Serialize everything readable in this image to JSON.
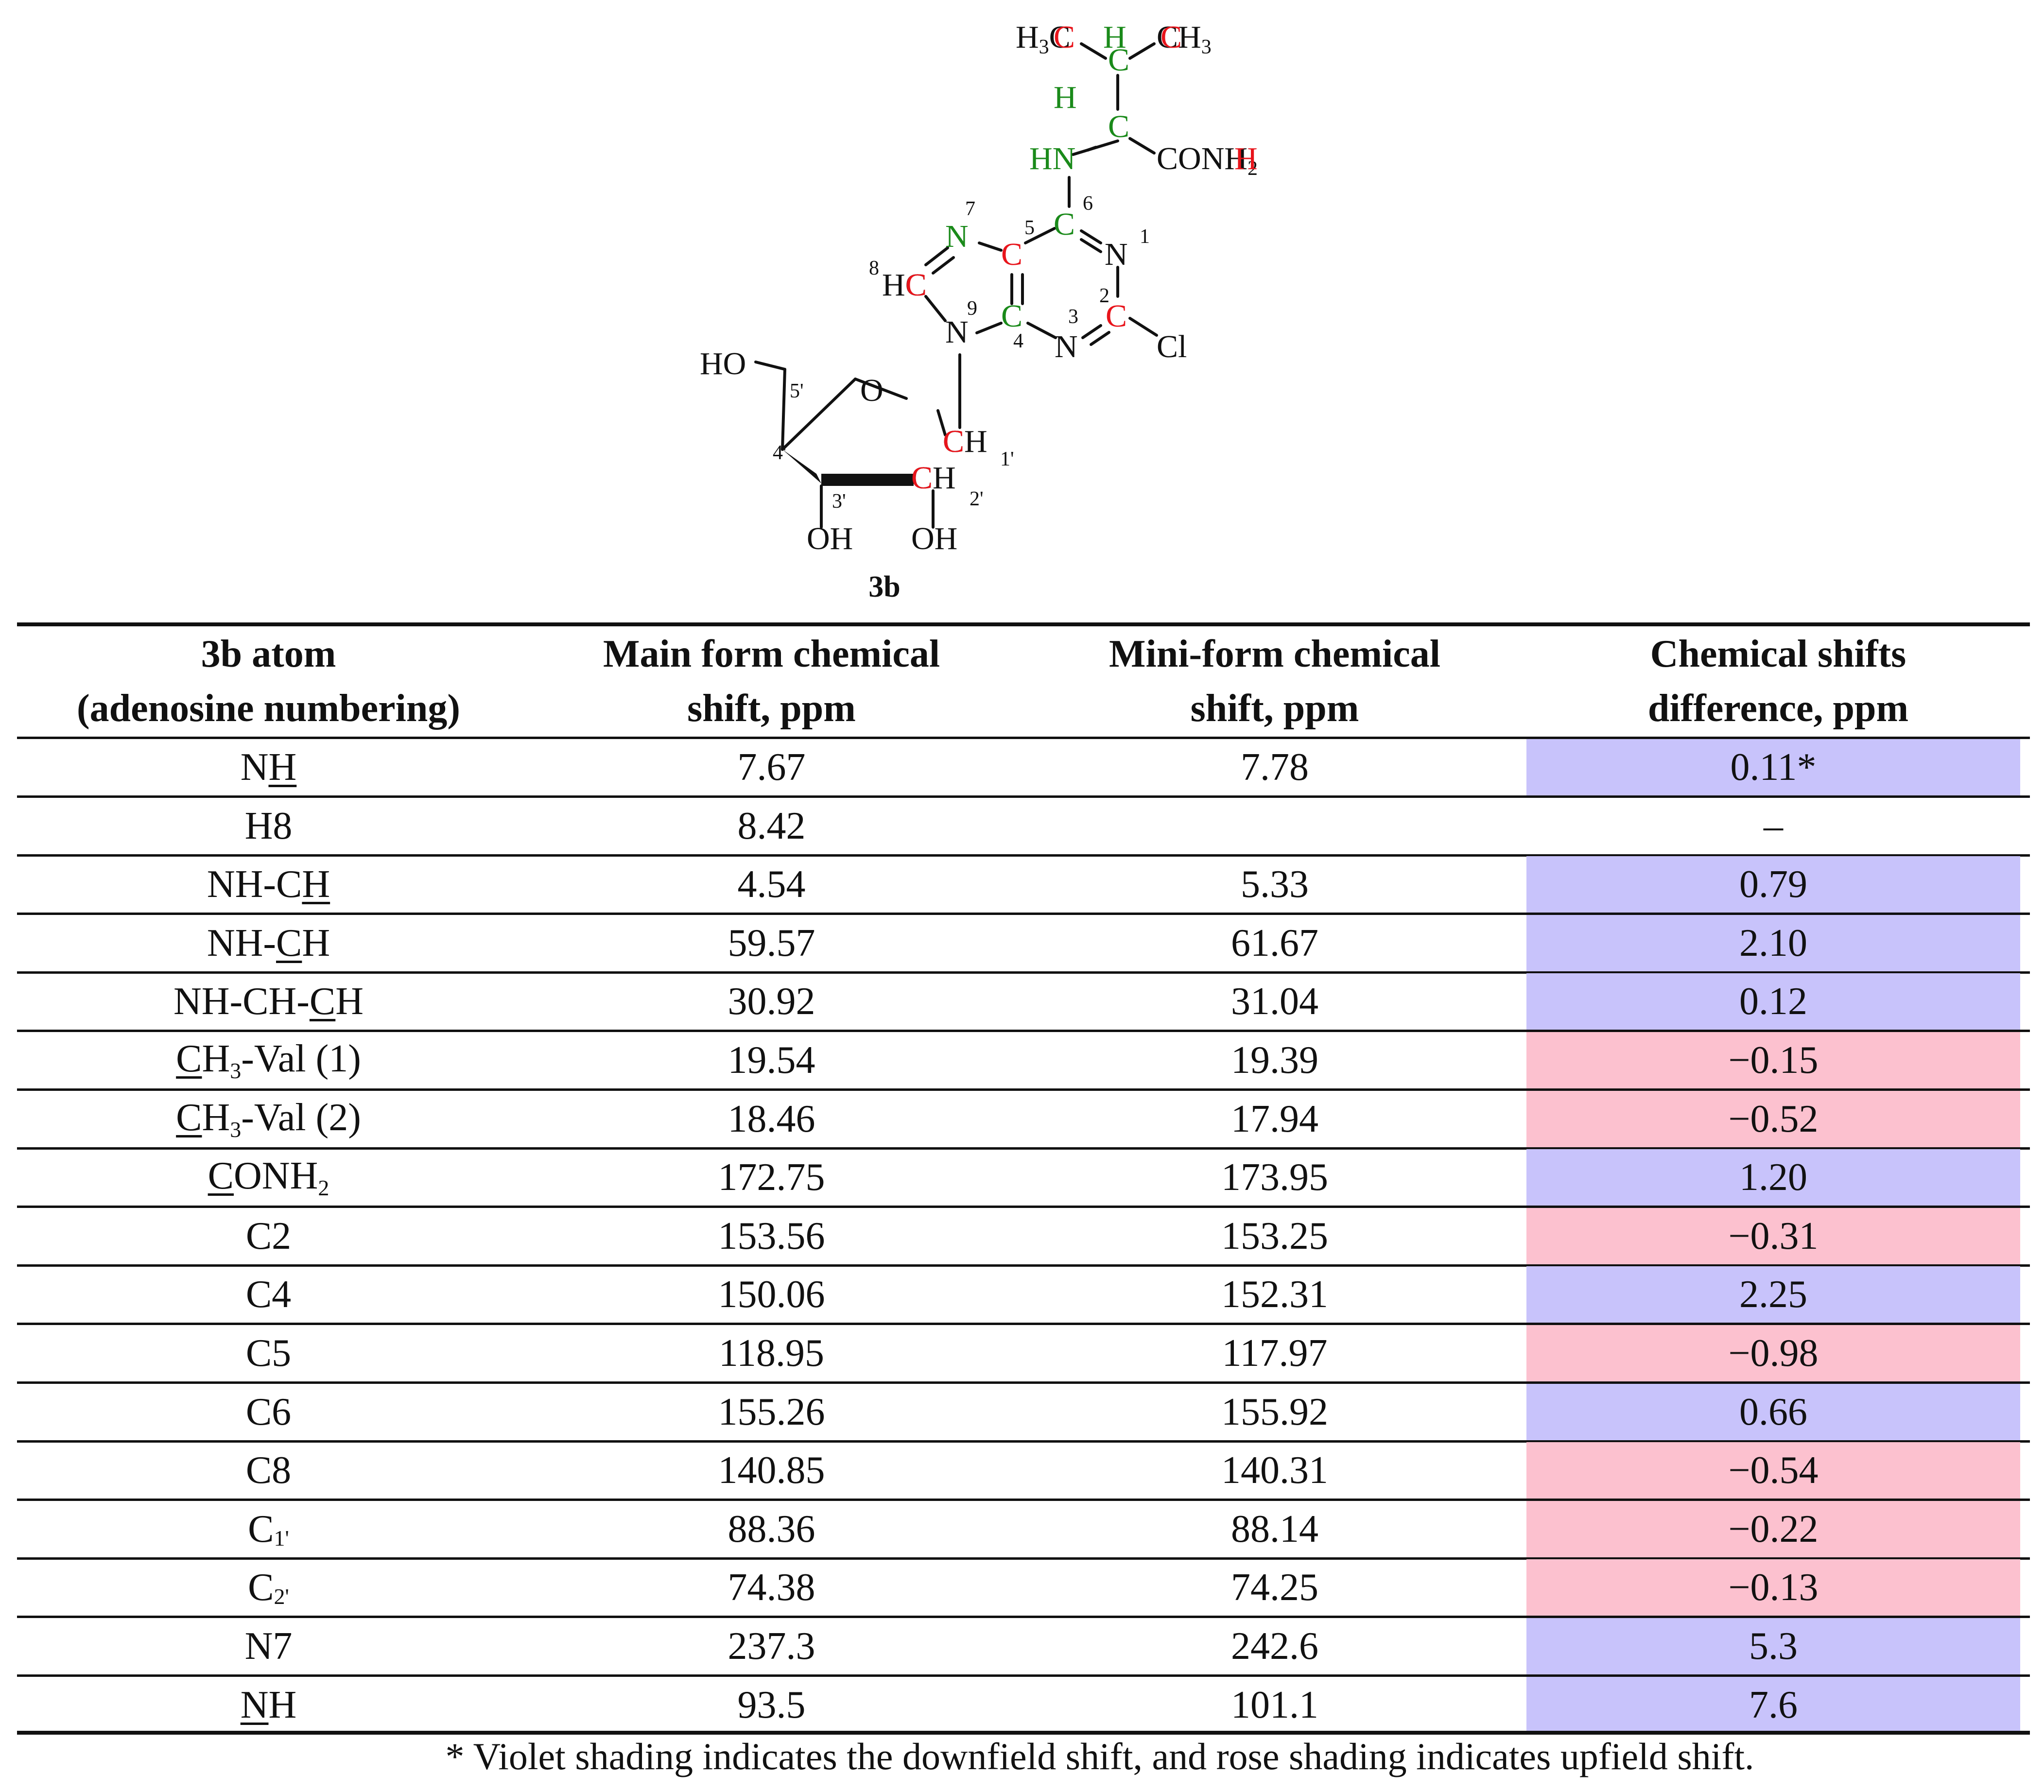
{
  "compound": {
    "label": "3b",
    "atoms": {
      "h3c": "H3C",
      "h_top": "H",
      "ch3": "CH3",
      "c_top": "C",
      "h_alpha": "H",
      "c_alpha": "C",
      "hn": "HN",
      "conh2": "CONH2",
      "c6": "C",
      "n1": "N",
      "c5": "C",
      "n7": "N",
      "hc8": "HC",
      "c4": "C",
      "c2": "C",
      "n3": "N",
      "cl": "Cl",
      "n9": "N",
      "ho": "HO",
      "o": "O",
      "ch1": "CH",
      "ch2": "CH",
      "oh3": "OH",
      "oh2": "OH"
    },
    "numbers": [
      "1",
      "2",
      "3",
      "4",
      "5",
      "6",
      "7",
      "8",
      "9",
      "1'",
      "2'",
      "3'",
      "4'",
      "5'"
    ]
  },
  "table": {
    "headers": [
      [
        "3b atom",
        "(adenosine numbering)"
      ],
      [
        "Main form chemical",
        "shift, ppm"
      ],
      [
        "Mini-form chemical",
        "shift, ppm"
      ],
      [
        "Chemical shifts",
        "difference, ppm"
      ]
    ],
    "rows": [
      {
        "atom": "NH",
        "main": "7.67",
        "mini": "7.78",
        "diff": "0.11*",
        "shade": "violet"
      },
      {
        "atom": "H8",
        "main": "8.42",
        "mini": "",
        "diff": "–",
        "shade": "none"
      },
      {
        "atom": "NH-CH",
        "main": "4.54",
        "mini": "5.33",
        "diff": "0.79",
        "shade": "violet"
      },
      {
        "atom": "NH-CH",
        "main": "59.57",
        "mini": "61.67",
        "diff": "2.10",
        "shade": "violet"
      },
      {
        "atom": "NH-CH-CH",
        "main": "30.92",
        "mini": "31.04",
        "diff": "0.12",
        "shade": "violet"
      },
      {
        "atom": "CH3-Val (1)",
        "main": "19.54",
        "mini": "19.39",
        "diff": "−0.15",
        "shade": "rose"
      },
      {
        "atom": "CH3-Val (2)",
        "main": "18.46",
        "mini": "17.94",
        "diff": "−0.52",
        "shade": "rose"
      },
      {
        "atom": "CONH2",
        "main": "172.75",
        "mini": "173.95",
        "diff": "1.20",
        "shade": "violet"
      },
      {
        "atom": "C2",
        "main": "153.56",
        "mini": "153.25",
        "diff": "−0.31",
        "shade": "rose"
      },
      {
        "atom": "C4",
        "main": "150.06",
        "mini": "152.31",
        "diff": "2.25",
        "shade": "violet"
      },
      {
        "atom": "C5",
        "main": "118.95",
        "mini": "117.97",
        "diff": "−0.98",
        "shade": "rose"
      },
      {
        "atom": "C6",
        "main": "155.26",
        "mini": "155.92",
        "diff": "0.66",
        "shade": "violet"
      },
      {
        "atom": "C8",
        "main": "140.85",
        "mini": "140.31",
        "diff": "−0.54",
        "shade": "rose"
      },
      {
        "atom": "C1'",
        "main": "88.36",
        "mini": "88.14",
        "diff": "−0.22",
        "shade": "rose"
      },
      {
        "atom": "C2'",
        "main": "74.38",
        "mini": "74.25",
        "diff": "−0.13",
        "shade": "rose"
      },
      {
        "atom": "N7",
        "main": "237.3",
        "mini": "242.6",
        "diff": "5.3",
        "shade": "violet"
      },
      {
        "atom": "NH",
        "main": "93.5",
        "mini": "101.1",
        "diff": "7.6",
        "shade": "violet"
      }
    ]
  },
  "footnote": "* Violet shading indicates the downfield shift, and rose shading indicates upfield shift.",
  "colors": {
    "red": "#e8141b",
    "green": "#1a8a1a",
    "violet": "#c8c3fb",
    "rose": "#fcc1cf",
    "text": "#111111"
  }
}
